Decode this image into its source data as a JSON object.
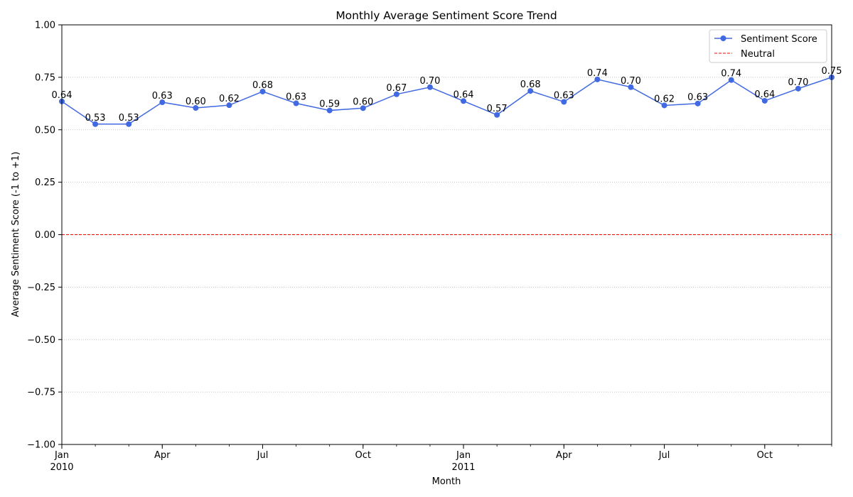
{
  "chart_data": {
    "type": "line",
    "title": "Monthly Average Sentiment Score Trend",
    "xlabel": "Month",
    "ylabel": "Average Sentiment Score (-1 to +1)",
    "ylim": [
      -1.0,
      1.0
    ],
    "yticks": [
      -1.0,
      -0.75,
      -0.5,
      -0.25,
      0.0,
      0.25,
      0.5,
      0.75,
      1.0
    ],
    "ytick_labels": [
      "−1.00",
      "−0.75",
      "−0.50",
      "−0.25",
      "0.00",
      "0.25",
      "0.50",
      "0.75",
      "1.00"
    ],
    "x": [
      "2010-01",
      "2010-02",
      "2010-03",
      "2010-04",
      "2010-05",
      "2010-06",
      "2010-07",
      "2010-08",
      "2010-09",
      "2010-10",
      "2010-11",
      "2010-12",
      "2011-01",
      "2011-02",
      "2011-03",
      "2011-04",
      "2011-05",
      "2011-06",
      "2011-07",
      "2011-08",
      "2011-09",
      "2011-10",
      "2011-11",
      "2011-12"
    ],
    "xtick_labels": [
      {
        "x": "2010-01",
        "label": "Jan",
        "sublabel": "2010"
      },
      {
        "x": "2010-04",
        "label": "Apr",
        "sublabel": ""
      },
      {
        "x": "2010-07",
        "label": "Jul",
        "sublabel": ""
      },
      {
        "x": "2010-10",
        "label": "Oct",
        "sublabel": ""
      },
      {
        "x": "2011-01",
        "label": "Jan",
        "sublabel": "2011"
      },
      {
        "x": "2011-04",
        "label": "Apr",
        "sublabel": ""
      },
      {
        "x": "2011-07",
        "label": "Jul",
        "sublabel": ""
      },
      {
        "x": "2011-10",
        "label": "Oct",
        "sublabel": ""
      }
    ],
    "series": [
      {
        "name": "Sentiment Score",
        "color": "#4169e1",
        "marker": "circle",
        "values": [
          0.635,
          0.527,
          0.527,
          0.631,
          0.604,
          0.617,
          0.682,
          0.626,
          0.592,
          0.603,
          0.669,
          0.703,
          0.637,
          0.571,
          0.685,
          0.633,
          0.74,
          0.703,
          0.616,
          0.625,
          0.737,
          0.638,
          0.696,
          0.75
        ],
        "data_labels": [
          "0.64",
          "0.53",
          "0.53",
          "0.63",
          "0.60",
          "0.62",
          "0.68",
          "0.63",
          "0.59",
          "0.60",
          "0.67",
          "0.70",
          "0.64",
          "0.57",
          "0.68",
          "0.63",
          "0.74",
          "0.70",
          "0.62",
          "0.63",
          "0.74",
          "0.64",
          "0.70",
          "0.75"
        ]
      }
    ],
    "reference_line": {
      "name": "Neutral",
      "y": 0.0,
      "color": "#ff0000",
      "style": "dashed"
    },
    "grid": {
      "y": true,
      "x": false,
      "style": "dotted"
    },
    "legend": {
      "position": "top-right"
    }
  }
}
